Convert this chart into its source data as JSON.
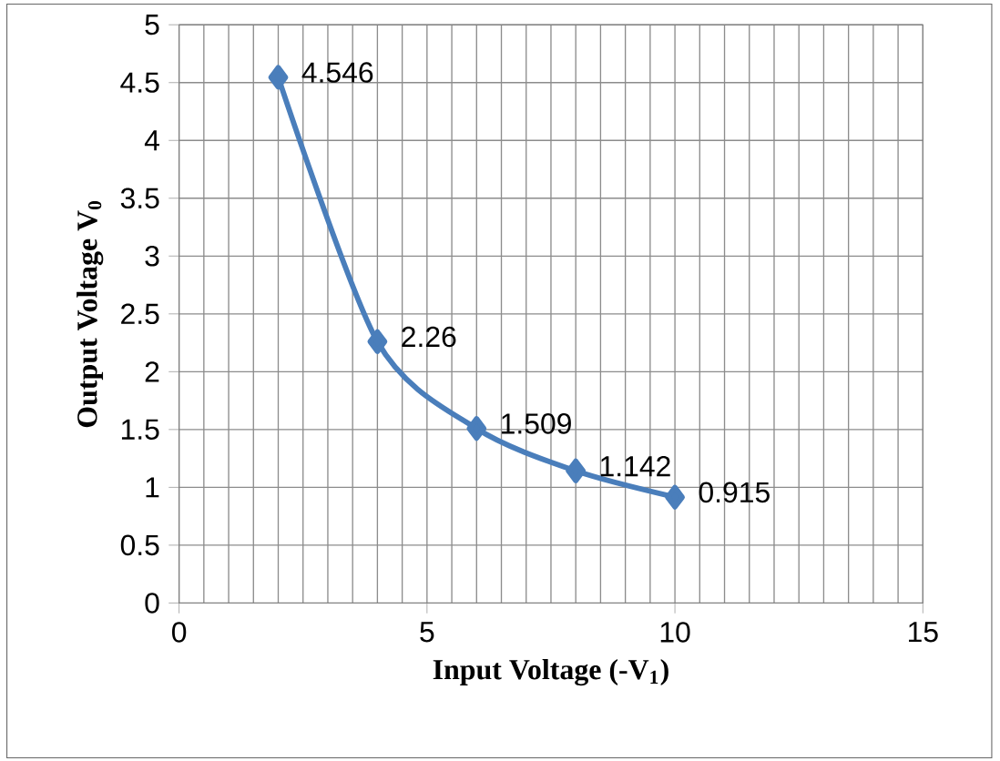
{
  "chart_data": {
    "type": "line",
    "xlabel": "Input Voltage (-V$_{1}$)",
    "ylabel": "Output Voltage V$_{0}$",
    "x": [
      2,
      4,
      6,
      8,
      10
    ],
    "series": [
      {
        "color": "#4a7ebb",
        "values": [
          4.546,
          2.26,
          1.509,
          1.142,
          0.915
        ]
      }
    ],
    "xlim": [
      0,
      15
    ],
    "xticks": [
      0,
      5,
      10,
      15
    ],
    "ylim": [
      0,
      5
    ],
    "yticks": [
      0,
      0.5,
      1,
      1.5,
      2,
      2.5,
      3,
      3.5,
      4,
      4.5,
      5
    ],
    "grid": true,
    "marker": "diamond",
    "line_style": "solid",
    "data_labels": true
  }
}
